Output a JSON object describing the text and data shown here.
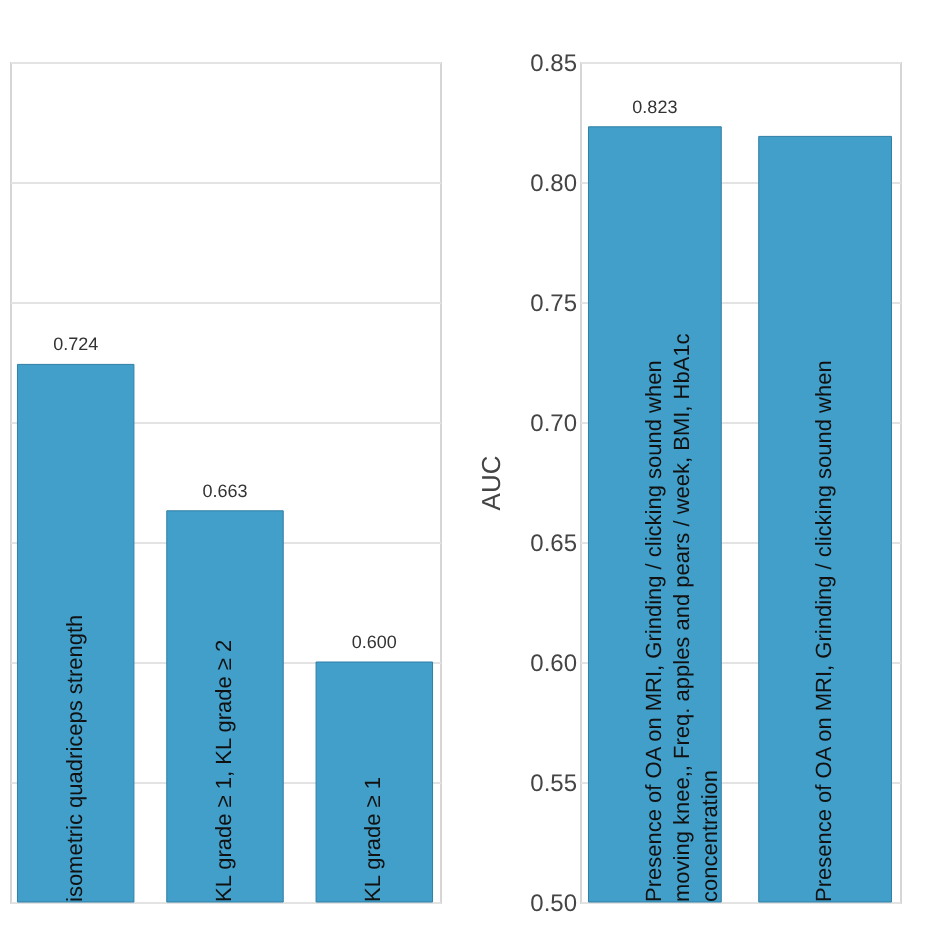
{
  "chart_data": [
    {
      "type": "bar",
      "categories": [
        "isometric quadriceps strength",
        "KL grade ≥ 1, KL grade ≥ 2",
        "KL grade ≥ 1"
      ],
      "series": [
        {
          "color": "#419fca",
          "values": [
            0.724,
            0.663,
            0.6
          ],
          "value_labels": [
            "0.724",
            "0.663",
            "0.600"
          ]
        }
      ],
      "ylim": [
        0.5,
        0.85
      ],
      "yticks": [
        {
          "value": 0.5,
          "label": null
        },
        {
          "value": 0.55,
          "label": null
        },
        {
          "value": 0.6,
          "label": null
        },
        {
          "value": 0.65,
          "label": null
        },
        {
          "value": 0.7,
          "label": null
        },
        {
          "value": 0.75,
          "label": null
        },
        {
          "value": 0.8,
          "label": null
        },
        {
          "value": 0.85,
          "label": null
        }
      ],
      "grid": "y",
      "tick_labels": false
    },
    {
      "type": "bar",
      "ylabel": "AUC",
      "categories": [
        "Presence of OA on MRI, Grinding / clicking sound when moving knee,, Freq. apples and pears / week, BMI, HbA1c concentration",
        "Presence of OA on MRI, Grinding / clicking sound when"
      ],
      "series": [
        {
          "color": "#419fca",
          "values": [
            0.823,
            0.819
          ],
          "value_labels": [
            "0.823",
            null
          ]
        }
      ],
      "ylim": [
        0.5,
        0.85
      ],
      "yticks": [
        {
          "value": 0.5,
          "label": "0.50"
        },
        {
          "value": 0.55,
          "label": "0.55"
        },
        {
          "value": 0.6,
          "label": "0.60"
        },
        {
          "value": 0.65,
          "label": "0.65"
        },
        {
          "value": 0.7,
          "label": "0.70"
        },
        {
          "value": 0.75,
          "label": "0.75"
        },
        {
          "value": 0.8,
          "label": "0.80"
        },
        {
          "value": 0.85,
          "label": "0.85"
        }
      ],
      "grid": "y"
    }
  ]
}
